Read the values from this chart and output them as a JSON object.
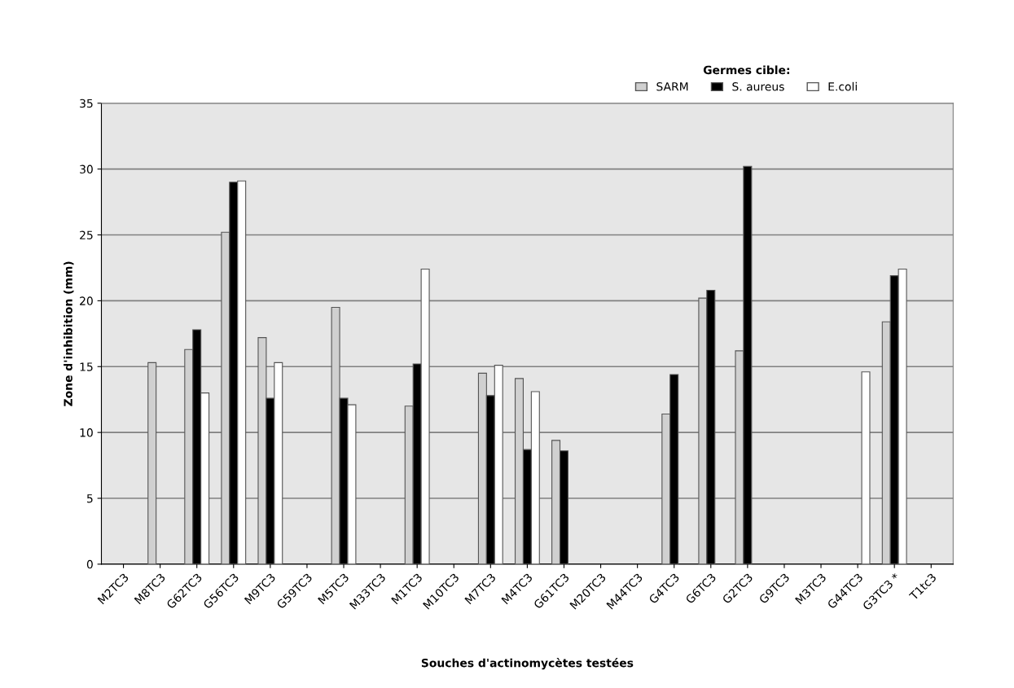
{
  "chart_data": {
    "type": "bar",
    "xlabel": "Souches d'actinomycètes testées",
    "ylabel": "Zone d'inhibition (mm)",
    "legend_title": "Germes cible:",
    "categories": [
      "M2TC3",
      "M8TC3",
      "G62TC3",
      "G56TC3",
      "M9TC3",
      "G59TC3",
      "M5TC3",
      "M33TC3",
      "M1TC3",
      "M10TC3",
      "M7TC3",
      "M4TC3",
      "G61TC3",
      "M20TC3",
      "M44TC3",
      "G4TC3",
      "G6TC3",
      "G2TC3",
      "G9TC3",
      "M3TC3",
      "G44TC3",
      "G3TC3 *",
      "T1tc3"
    ],
    "series": [
      {
        "name": "SARM",
        "color": "#d0d0d0",
        "values": [
          0,
          15.3,
          16.3,
          25.2,
          17.2,
          0,
          19.5,
          0,
          12,
          0,
          14.5,
          14.1,
          9.4,
          0,
          0,
          11.4,
          20.2,
          16.2,
          0,
          0,
          0,
          18.4,
          0
        ]
      },
      {
        "name": "S. aureus",
        "color": "#000000",
        "values": [
          0,
          0,
          17.8,
          29,
          12.6,
          0,
          12.6,
          0,
          15.2,
          0,
          12.8,
          8.7,
          8.6,
          0,
          0,
          14.4,
          20.8,
          30.2,
          0,
          0,
          0,
          21.9,
          0
        ]
      },
      {
        "name": "E.coli",
        "color": "#ffffff",
        "values": [
          0,
          0,
          13,
          29.1,
          15.3,
          0,
          12.1,
          0,
          22.4,
          0,
          15.1,
          13.1,
          0,
          0,
          0,
          0,
          0,
          0,
          0,
          0,
          14.6,
          22.4,
          0
        ]
      }
    ],
    "ylim": [
      0,
      35
    ],
    "yticks": [
      0,
      5,
      10,
      15,
      20,
      25,
      30,
      35
    ],
    "grid": "y",
    "legend": "top right"
  }
}
